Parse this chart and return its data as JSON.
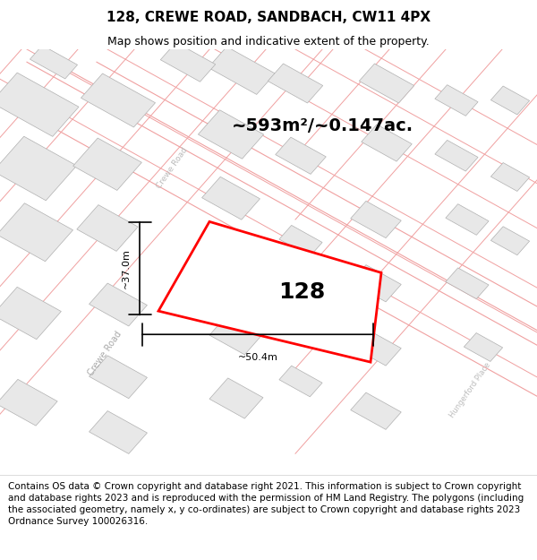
{
  "title": "128, CREWE ROAD, SANDBACH, CW11 4PX",
  "subtitle": "Map shows position and indicative extent of the property.",
  "footer": "Contains OS data © Crown copyright and database right 2021. This information is subject to Crown copyright and database rights 2023 and is reproduced with the permission of HM Land Registry. The polygons (including the associated geometry, namely x, y co-ordinates) are subject to Crown copyright and database rights 2023 Ordnance Survey 100026316.",
  "area_label": "~593m²/~0.147ac.",
  "plot_label": "128",
  "dim_width": "~50.4m",
  "dim_height": "~37.0m",
  "map_bg": "#ffffff",
  "building_fill": "#e8e8e8",
  "building_edge": "#b0b0b0",
  "parcel_line": "#f0a0a0",
  "road_line": "#f0a0a0",
  "red_color": "#ff0000",
  "label_color_road": "#b0b0b0",
  "title_fontsize": 11,
  "subtitle_fontsize": 9,
  "footer_fontsize": 7.5,
  "area_fontsize": 14,
  "plot_label_fontsize": 18,
  "dim_fontsize": 8
}
